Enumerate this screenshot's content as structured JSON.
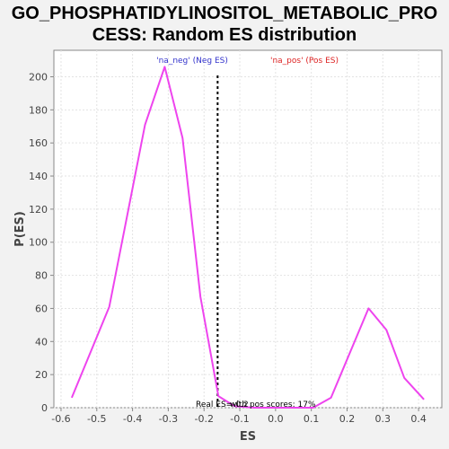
{
  "chart_data": {
    "type": "line",
    "title_line1": "GO_PHOSPHATIDYLINOSITOL_METABOLIC_PRO",
    "title_line2": "CESS: Random ES distribution",
    "xlabel": "ES",
    "ylabel": "P(ES)",
    "xlim": [
      -0.62,
      0.465
    ],
    "ylim": [
      0,
      216
    ],
    "x_ticks": [
      -0.6,
      -0.5,
      -0.4,
      -0.3,
      -0.2,
      -0.1,
      0.0,
      0.1,
      0.2,
      0.3,
      0.4
    ],
    "x_tick_labels": [
      "-0.6",
      "-0.5",
      "-0.4",
      "-0.3",
      "-0.2",
      "-0.1",
      "0.0",
      "0.1",
      "0.2",
      "0.3",
      "0.4"
    ],
    "y_ticks": [
      0,
      20,
      40,
      60,
      80,
      100,
      120,
      140,
      160,
      180,
      200
    ],
    "y_tick_labels": [
      "0",
      "20",
      "40",
      "60",
      "80",
      "100",
      "120",
      "140",
      "160",
      "180",
      "200"
    ],
    "grid": true,
    "series": [
      {
        "color": "#ee44ee",
        "x": [
          -0.57,
          -0.465,
          -0.365,
          -0.31,
          -0.26,
          -0.21,
          -0.16,
          -0.115,
          -0.06,
          0.0,
          0.06,
          0.105,
          0.155,
          0.26,
          0.31,
          0.36,
          0.415
        ],
        "y": [
          6,
          61,
          171,
          206,
          163,
          67,
          7,
          1,
          0,
          0,
          0,
          0,
          6,
          60,
          47,
          18,
          5
        ]
      }
    ],
    "real_es": -0.162,
    "annotations": {
      "neg_label": "'na_neg' (Neg ES)",
      "pos_label": "'na_pos' (Pos ES)",
      "real_es_label": "Real ES=-0.2",
      "pos_scores_label": "with pos scores: 17%",
      "neg_color": "#3333cc",
      "pos_color": "#dd2222"
    },
    "colors": {
      "plot_background": "#ffffff",
      "page_background": "#f2f2f2",
      "grid": "#e3e3e3",
      "axis": "#888888"
    }
  }
}
